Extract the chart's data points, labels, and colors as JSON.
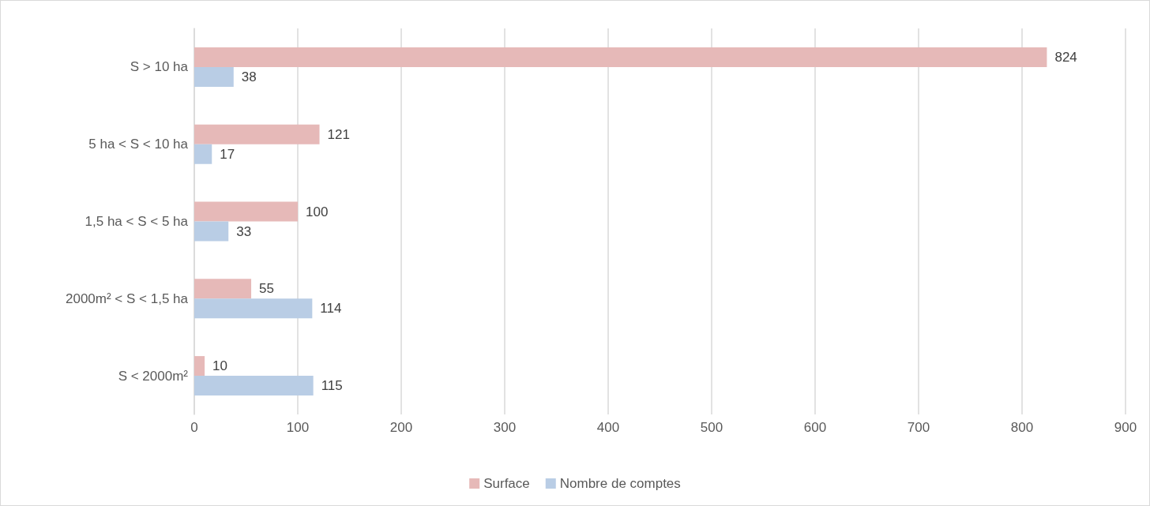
{
  "chart_data": {
    "type": "bar",
    "orientation": "horizontal",
    "categories": [
      "S > 10 ha",
      "5 ha < S < 10 ha",
      "1,5 ha < S < 5 ha",
      "2000m² < S < 1,5 ha",
      "S < 2000m²"
    ],
    "series": [
      {
        "name": "Surface",
        "color": "#e6b9b8",
        "values": [
          824,
          121,
          100,
          55,
          10
        ]
      },
      {
        "name": "Nombre de comptes",
        "color": "#b9cde5",
        "values": [
          38,
          17,
          33,
          114,
          115
        ]
      }
    ],
    "xlim": [
      0,
      900
    ],
    "xticks": [
      0,
      100,
      200,
      300,
      400,
      500,
      600,
      700,
      800,
      900
    ],
    "grid": "x",
    "legend": "bottom",
    "data_labels": true
  }
}
